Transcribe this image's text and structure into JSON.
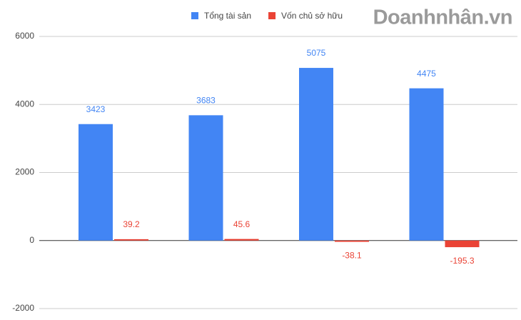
{
  "chart_data": {
    "type": "bar",
    "watermark": "Doanhnhân.vn",
    "categories": [
      null,
      null,
      null,
      null
    ],
    "series": [
      {
        "name": "Tổng tài sản",
        "color": "#4285f4",
        "values": [
          3423,
          3683,
          5075,
          4475
        ]
      },
      {
        "name": "Vốn chủ sở hữu",
        "color": "#ea4335",
        "values": [
          39.2,
          45.6,
          -38.1,
          -195.3
        ]
      }
    ],
    "ylim": [
      -2000,
      6000
    ],
    "yticks": [
      -2000,
      0,
      2000,
      4000,
      6000
    ],
    "grid": true,
    "legend": "top"
  }
}
